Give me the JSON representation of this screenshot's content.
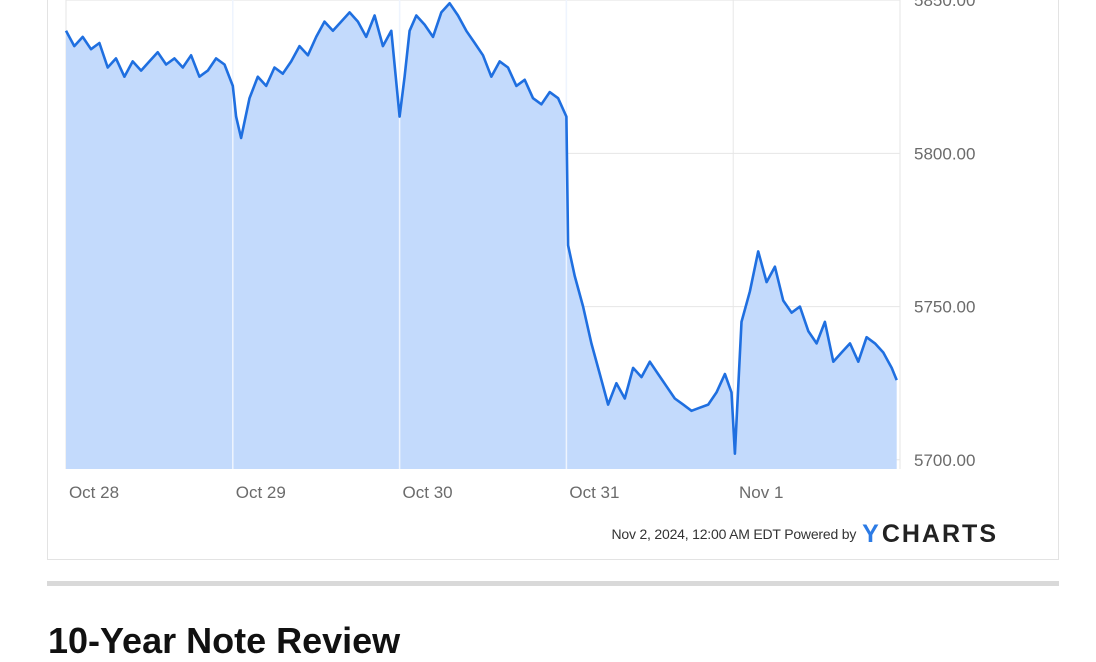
{
  "chart_data": {
    "type": "area",
    "title": "",
    "xlabel": "",
    "ylabel": "",
    "x_ticks": [
      "Oct 28",
      "Oct 29",
      "Oct 30",
      "Oct 31",
      "Nov 1"
    ],
    "y_ticks": [
      "5850.00",
      "5800.00",
      "5750.00",
      "5700.00"
    ],
    "y_tick_values": [
      5850,
      5800,
      5750,
      5700
    ],
    "ylim": [
      5697,
      5852
    ],
    "xlim": [
      0,
      5
    ],
    "grid": true,
    "series": [
      {
        "x": [
          0.0,
          0.05,
          0.1,
          0.15,
          0.2,
          0.25,
          0.3,
          0.35,
          0.4,
          0.45,
          0.5,
          0.55,
          0.6,
          0.65,
          0.7,
          0.75,
          0.8,
          0.85,
          0.9,
          0.95,
          1.0,
          1.02,
          1.05,
          1.1,
          1.15,
          1.2,
          1.25,
          1.3,
          1.35,
          1.4,
          1.45,
          1.5,
          1.55,
          1.6,
          1.65,
          1.7,
          1.75,
          1.8,
          1.85,
          1.9,
          1.95,
          2.0,
          2.03,
          2.06,
          2.1,
          2.15,
          2.2,
          2.25,
          2.3,
          2.35,
          2.4,
          2.45,
          2.5,
          2.55,
          2.6,
          2.65,
          2.7,
          2.75,
          2.8,
          2.85,
          2.9,
          2.95,
          3.0,
          3.01,
          3.05,
          3.1,
          3.15,
          3.2,
          3.25,
          3.3,
          3.35,
          3.4,
          3.45,
          3.5,
          3.55,
          3.6,
          3.65,
          3.7,
          3.75,
          3.8,
          3.85,
          3.9,
          3.95,
          3.99,
          4.01,
          4.05,
          4.1,
          4.15,
          4.2,
          4.25,
          4.3,
          4.35,
          4.4,
          4.45,
          4.5,
          4.55,
          4.6,
          4.65,
          4.7,
          4.75,
          4.8,
          4.85,
          4.9,
          4.95,
          4.98
        ],
        "values": [
          5840,
          5835,
          5838,
          5834,
          5836,
          5828,
          5831,
          5825,
          5830,
          5827,
          5830,
          5833,
          5829,
          5831,
          5828,
          5832,
          5825,
          5827,
          5831,
          5829,
          5822,
          5812,
          5805,
          5818,
          5825,
          5822,
          5828,
          5826,
          5830,
          5835,
          5832,
          5838,
          5843,
          5840,
          5843,
          5846,
          5843,
          5838,
          5845,
          5835,
          5840,
          5812,
          5825,
          5840,
          5845,
          5842,
          5838,
          5846,
          5849,
          5845,
          5840,
          5836,
          5832,
          5825,
          5830,
          5828,
          5822,
          5824,
          5818,
          5816,
          5820,
          5818,
          5812,
          5770,
          5760,
          5750,
          5738,
          5728,
          5718,
          5725,
          5720,
          5730,
          5727,
          5732,
          5728,
          5724,
          5720,
          5718,
          5716,
          5717,
          5718,
          5722,
          5728,
          5722,
          5702,
          5745,
          5755,
          5768,
          5758,
          5763,
          5752,
          5748,
          5750,
          5742,
          5738,
          5745,
          5732,
          5735,
          5738,
          5732,
          5740,
          5738,
          5735,
          5730,
          5726
        ]
      }
    ]
  },
  "footer": {
    "timestamp": "Nov 2, 2024, 12:00 AM EDT Powered by",
    "logo_y": "Y",
    "logo_rest": "CHARTS"
  },
  "next_section": {
    "title": "10-Year Note Review"
  },
  "colors": {
    "line": "#1f6fe0",
    "fill": "#c3dafc",
    "grid": "#e6e6e6"
  }
}
